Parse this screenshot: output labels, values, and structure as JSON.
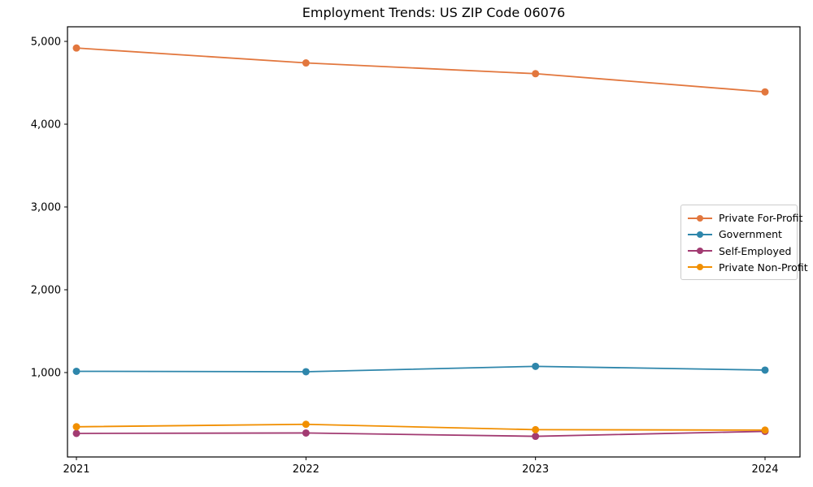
{
  "chart_data": {
    "type": "line",
    "title": "Employment Trends: US ZIP Code 06076",
    "xlabel": "",
    "ylabel": "",
    "x": [
      2021,
      2022,
      2023,
      2024
    ],
    "xtick_labels": [
      "2021",
      "2022",
      "2023",
      "2024"
    ],
    "yticks": [
      1000,
      2000,
      3000,
      4000,
      5000
    ],
    "ytick_labels": [
      "1,000",
      "2,000",
      "3,000",
      "4,000",
      "5,000"
    ],
    "ylim": [
      -20,
      5180
    ],
    "grid": false,
    "legend_position": "center-right",
    "marker": "circle",
    "series": [
      {
        "name": "Private For-Profit",
        "color": "#E2773E",
        "values": [
          4920,
          4740,
          4610,
          4390
        ]
      },
      {
        "name": "Government",
        "color": "#2E86AB",
        "values": [
          1015,
          1010,
          1075,
          1030
        ]
      },
      {
        "name": "Self-Employed",
        "color": "#A23B72",
        "values": [
          265,
          270,
          230,
          290
        ]
      },
      {
        "name": "Private Non-Profit",
        "color": "#F18F01",
        "values": [
          345,
          375,
          310,
          305
        ]
      }
    ]
  }
}
